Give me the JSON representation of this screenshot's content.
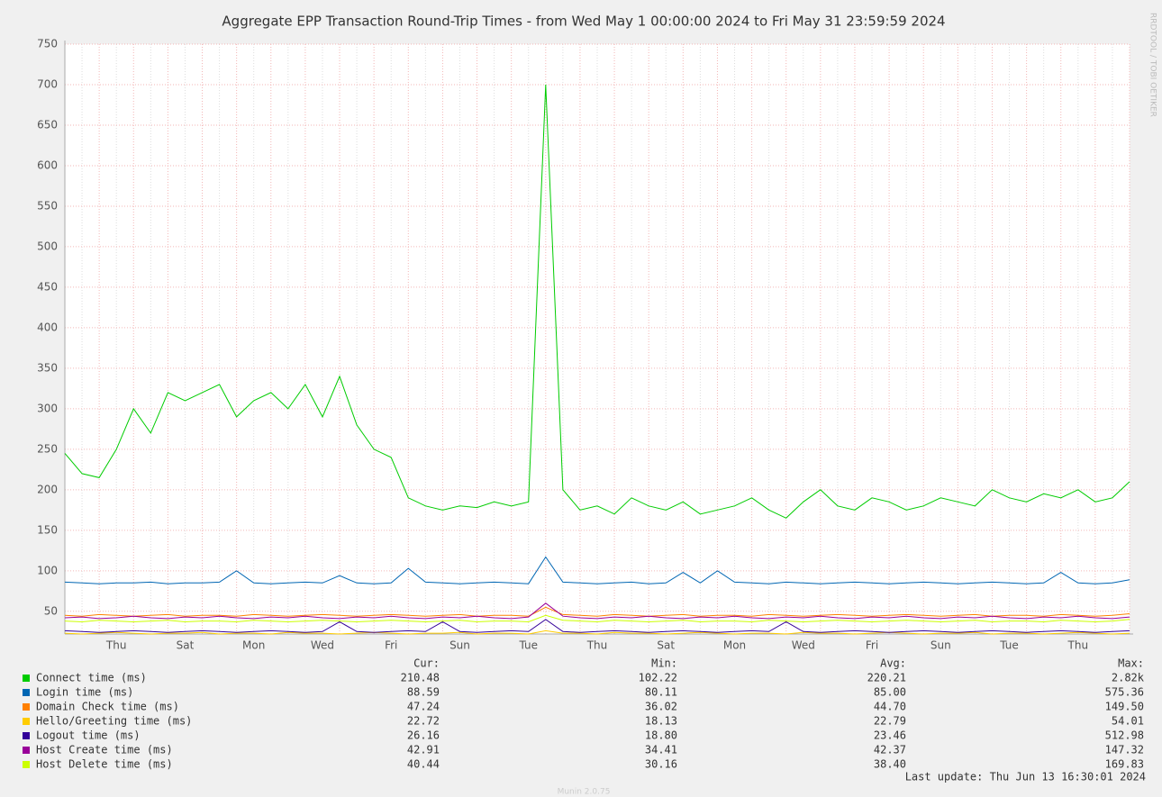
{
  "chart_data": {
    "type": "line",
    "title": "Aggregate EPP Transaction Round-Trip Times - from Wed May  1 00:00:00 2024 to Fri May 31 23:59:59 2024",
    "side_text": "RRDTOOL / TOBI OETIKER",
    "categories": [
      null,
      null,
      null,
      "Thu",
      null,
      null,
      null,
      "Sat",
      null,
      null,
      null,
      "Mon",
      null,
      null,
      null,
      "Wed",
      null,
      null,
      null,
      "Fri",
      null,
      null,
      null,
      "Sun",
      null,
      null,
      null,
      "Tue",
      null,
      null,
      null,
      "Thu",
      null,
      null,
      null,
      "Sat",
      null,
      null,
      null,
      "Mon",
      null,
      null,
      null,
      "Wed",
      null,
      null,
      null,
      "Fri",
      null,
      null,
      null,
      "Sun",
      null,
      null,
      null,
      "Tue",
      null,
      null,
      null,
      "Thu",
      null,
      null,
      null
    ],
    "ylim": [
      22,
      750
    ],
    "yticks": [
      50,
      100,
      150,
      200,
      250,
      300,
      350,
      400,
      450,
      500,
      550,
      600,
      650,
      700,
      750
    ],
    "grid": true,
    "legend_columns": [
      "Cur:",
      "Min:",
      "Avg:",
      "Max:"
    ],
    "series": [
      {
        "name": "Connect time (ms)",
        "color": "#00cc00",
        "stats": [
          "210.48",
          "102.22",
          "220.21",
          "2.82k"
        ],
        "values": [
          245,
          220,
          215,
          250,
          300,
          270,
          320,
          310,
          320,
          330,
          290,
          310,
          320,
          300,
          330,
          290,
          340,
          280,
          250,
          240,
          190,
          180,
          175,
          180,
          178,
          185,
          180,
          185,
          700,
          200,
          175,
          180,
          170,
          190,
          180,
          175,
          185,
          170,
          175,
          180,
          190,
          175,
          165,
          185,
          200,
          180,
          175,
          190,
          185,
          175,
          180,
          190,
          185,
          180,
          200,
          190,
          185,
          195,
          190,
          200,
          185,
          190,
          210
        ]
      },
      {
        "name": "Login time (ms)",
        "color": "#0066b3",
        "stats": [
          "88.59",
          "80.11",
          "85.00",
          "575.36"
        ],
        "values": [
          86,
          85,
          84,
          85,
          85,
          86,
          84,
          85,
          85,
          86,
          100,
          85,
          84,
          85,
          86,
          85,
          94,
          85,
          84,
          85,
          103,
          86,
          85,
          84,
          85,
          86,
          85,
          84,
          117,
          86,
          85,
          84,
          85,
          86,
          84,
          85,
          98,
          85,
          100,
          86,
          85,
          84,
          86,
          85,
          84,
          85,
          86,
          85,
          84,
          85,
          86,
          85,
          84,
          85,
          86,
          85,
          84,
          85,
          98,
          85,
          84,
          85,
          89
        ]
      },
      {
        "name": "Domain Check time (ms)",
        "color": "#ff8000",
        "stats": [
          "47.24",
          "36.02",
          "44.70",
          "149.50"
        ],
        "values": [
          45,
          44,
          46,
          45,
          44,
          45,
          46,
          44,
          45,
          45,
          44,
          46,
          45,
          44,
          45,
          46,
          45,
          44,
          45,
          46,
          45,
          44,
          45,
          46,
          44,
          45,
          45,
          44,
          55,
          46,
          45,
          44,
          46,
          45,
          44,
          45,
          46,
          44,
          45,
          45,
          44,
          46,
          45,
          44,
          45,
          46,
          45,
          44,
          45,
          46,
          45,
          44,
          45,
          46,
          44,
          45,
          45,
          44,
          46,
          45,
          44,
          45,
          47
        ]
      },
      {
        "name": "Hello/Greeting time (ms)",
        "color": "#ffcc00",
        "stats": [
          "22.72",
          "18.13",
          "22.79",
          "54.01"
        ],
        "values": [
          23,
          22,
          23,
          24,
          23,
          22,
          23,
          23,
          24,
          22,
          23,
          23,
          22,
          24,
          23,
          23,
          22,
          23,
          24,
          23,
          22,
          23,
          23,
          24,
          22,
          23,
          23,
          22,
          26,
          23,
          23,
          22,
          24,
          23,
          23,
          22,
          23,
          24,
          23,
          22,
          23,
          23,
          22,
          24,
          23,
          23,
          22,
          23,
          24,
          23,
          22,
          23,
          23,
          24,
          22,
          23,
          23,
          22,
          23,
          24,
          23,
          22,
          23
        ]
      },
      {
        "name": "Logout time (ms)",
        "color": "#330099",
        "stats": [
          "26.16",
          "18.80",
          "23.46",
          "512.98"
        ],
        "values": [
          26,
          25,
          24,
          25,
          26,
          25,
          24,
          25,
          26,
          25,
          24,
          25,
          26,
          25,
          24,
          25,
          37,
          25,
          24,
          25,
          26,
          25,
          37,
          25,
          24,
          25,
          26,
          25,
          40,
          25,
          24,
          25,
          26,
          25,
          24,
          25,
          26,
          25,
          24,
          25,
          26,
          25,
          37,
          25,
          24,
          25,
          26,
          25,
          24,
          25,
          26,
          25,
          24,
          25,
          26,
          25,
          24,
          25,
          26,
          25,
          24,
          25,
          26
        ]
      },
      {
        "name": "Host Create time (ms)",
        "color": "#990099",
        "stats": [
          "42.91",
          "34.41",
          "42.37",
          "147.32"
        ],
        "values": [
          42,
          43,
          41,
          42,
          44,
          42,
          41,
          43,
          42,
          44,
          42,
          41,
          43,
          42,
          44,
          42,
          41,
          43,
          42,
          44,
          42,
          41,
          43,
          42,
          44,
          42,
          41,
          43,
          60,
          44,
          42,
          41,
          43,
          42,
          44,
          42,
          41,
          43,
          42,
          44,
          42,
          41,
          43,
          42,
          44,
          42,
          41,
          43,
          42,
          44,
          42,
          41,
          43,
          42,
          44,
          42,
          41,
          43,
          42,
          44,
          42,
          41,
          43
        ]
      },
      {
        "name": "Host Delete time (ms)",
        "color": "#ccff00",
        "stats": [
          "40.44",
          "30.16",
          "38.40",
          "169.83"
        ],
        "values": [
          38,
          37,
          39,
          38,
          37,
          38,
          39,
          37,
          38,
          38,
          37,
          39,
          38,
          37,
          38,
          39,
          38,
          37,
          38,
          39,
          38,
          37,
          38,
          39,
          37,
          38,
          38,
          37,
          45,
          39,
          38,
          37,
          39,
          38,
          37,
          38,
          39,
          37,
          38,
          38,
          37,
          39,
          38,
          37,
          38,
          39,
          38,
          37,
          38,
          39,
          38,
          37,
          38,
          39,
          37,
          38,
          38,
          37,
          39,
          38,
          37,
          38,
          40
        ]
      }
    ],
    "last_update": "Last update: Thu Jun 13 16:30:01 2024",
    "footer": "Munin 2.0.75"
  }
}
